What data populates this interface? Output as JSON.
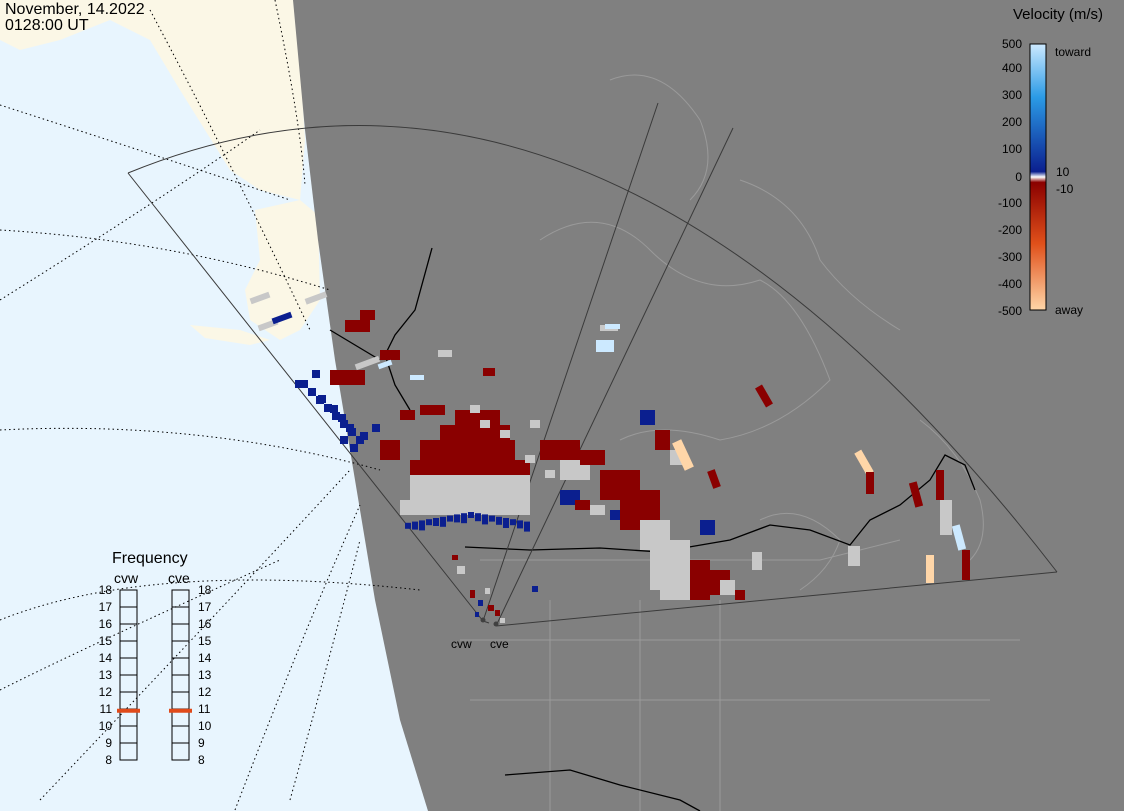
{
  "header": {
    "date": "November, 14.2022",
    "time": "0128:00 UT"
  },
  "velocity_scale": {
    "title": "Velocity (m/s)",
    "ticks": [
      "500",
      "400",
      "300",
      "200",
      "100",
      "10",
      "0",
      "-10",
      "-100",
      "-200",
      "-300",
      "-400",
      "-500"
    ],
    "toward_label": "toward",
    "away_label": "away",
    "colors": {
      "toward_light": "#cce9ff",
      "toward_mid": "#2b9be6",
      "toward_dark": "#0b1f8f",
      "away_dark": "#8a0000",
      "away_mid": "#e0501a",
      "away_light": "#ffd6a8",
      "ground_scatter": "#c8c8c8"
    }
  },
  "frequency_panel": {
    "title": "Frequency",
    "columns": [
      {
        "name": "cvw",
        "selected_mhz": 10.9
      },
      {
        "name": "cve",
        "selected_mhz": 10.9
      }
    ],
    "ticks": [
      "18",
      "17",
      "16",
      "15",
      "14",
      "13",
      "12",
      "11",
      "10",
      "9",
      "8"
    ],
    "marker_color": "#e04a1a"
  },
  "radars": [
    {
      "name": "cvw"
    },
    {
      "name": "cve"
    }
  ],
  "map": {
    "night_color": "#808080",
    "ocean_color": "#e8f5fe",
    "land_day_color": "#fbf7e6"
  }
}
